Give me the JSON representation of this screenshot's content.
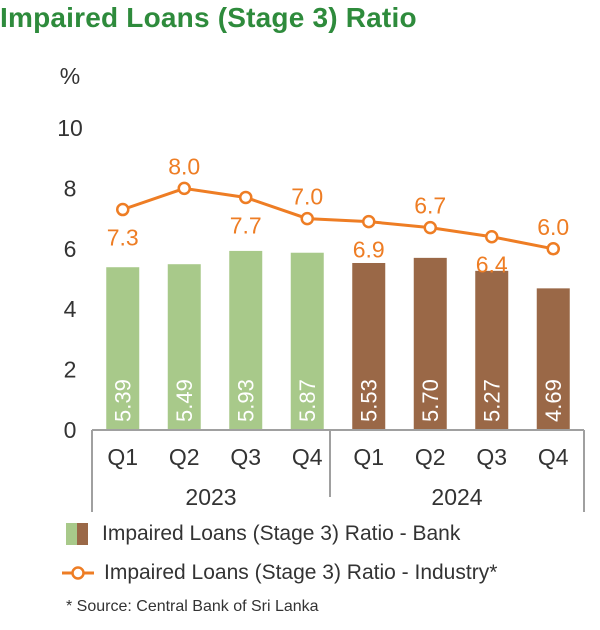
{
  "title": "Impaired Loans (Stage 3) Ratio",
  "colors": {
    "title": "#2e8b3c",
    "bank_2023": "#a8c98a",
    "bank_2024": "#9a6847",
    "industry": "#ee7d24",
    "axis": "#a0a0a0"
  },
  "legend": {
    "bank_label": "Impaired Loans (Stage 3) Ratio - Bank",
    "industry_label": "Impaired Loans (Stage 3) Ratio - Industry*"
  },
  "source": "* Source: Central Bank of Sri Lanka",
  "chart_data": {
    "type": "bar",
    "title": "Impaired Loans (Stage 3) Ratio",
    "ylabel": "%",
    "ylim": [
      0,
      10
    ],
    "yticks": [
      "0",
      "2",
      "4",
      "6",
      "8",
      "10"
    ],
    "categories": [
      "Q1",
      "Q2",
      "Q3",
      "Q4",
      "Q1",
      "Q2",
      "Q3",
      "Q4"
    ],
    "groups": [
      {
        "label": "2023",
        "categories": [
          "Q1",
          "Q2",
          "Q3",
          "Q4"
        ]
      },
      {
        "label": "2024",
        "categories": [
          "Q1",
          "Q2",
          "Q3",
          "Q4"
        ]
      }
    ],
    "series": [
      {
        "name": "Impaired Loans (Stage 3) Ratio - Bank",
        "type": "bar",
        "values": [
          5.39,
          5.49,
          5.93,
          5.87,
          5.53,
          5.7,
          5.27,
          4.69
        ],
        "labels": [
          "5.39",
          "5.49",
          "5.93",
          "5.87",
          "5.53",
          "5.70",
          "5.27",
          "4.69"
        ]
      },
      {
        "name": "Impaired Loans (Stage 3) Ratio - Industry*",
        "type": "line",
        "values": [
          7.3,
          8.0,
          7.7,
          7.0,
          6.9,
          6.7,
          6.4,
          6.0
        ],
        "labels": [
          "7.3",
          "8.0",
          "7.7",
          "7.0",
          "6.9",
          "6.7",
          "6.4",
          "6.0"
        ]
      }
    ],
    "grid": false,
    "legend_position": "bottom"
  }
}
